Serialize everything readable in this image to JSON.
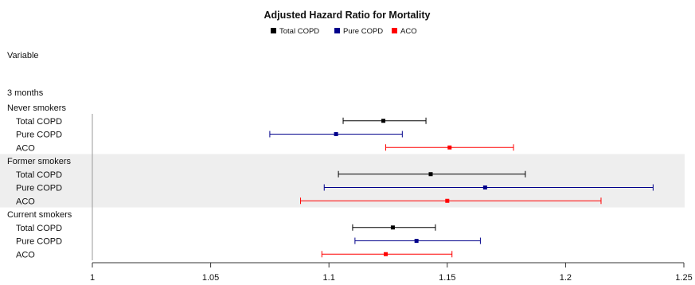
{
  "chart_data": {
    "type": "forest",
    "title": "Adjusted Hazard Ratio for Mortality",
    "column_header": "Variable",
    "period_label": "3 months",
    "legend": [
      {
        "name": "Total COPD",
        "color": "#000000"
      },
      {
        "name": "Pure COPD",
        "color": "#00008B"
      },
      {
        "name": "ACO",
        "color": "#FF0000"
      }
    ],
    "xlim": [
      1,
      1.25
    ],
    "x_ticks": [
      "1",
      "1.05",
      "1.1",
      "1.15",
      "1.2",
      "1.25"
    ],
    "legend_placement": "top-center",
    "groups": [
      {
        "name": "Never smokers",
        "shaded": false,
        "rows": [
          {
            "label": "Total COPD",
            "series": "Total COPD",
            "estimate": 1.123,
            "lower": 1.106,
            "upper": 1.141
          },
          {
            "label": "Pure COPD",
            "series": "Pure COPD",
            "estimate": 1.103,
            "lower": 1.075,
            "upper": 1.131
          },
          {
            "label": "ACO",
            "series": "ACO",
            "estimate": 1.151,
            "lower": 1.124,
            "upper": 1.178
          }
        ]
      },
      {
        "name": "Former smokers",
        "shaded": true,
        "rows": [
          {
            "label": "Total COPD",
            "series": "Total COPD",
            "estimate": 1.143,
            "lower": 1.104,
            "upper": 1.183
          },
          {
            "label": "Pure COPD",
            "series": "Pure COPD",
            "estimate": 1.166,
            "lower": 1.098,
            "upper": 1.237
          },
          {
            "label": "ACO",
            "series": "ACO",
            "estimate": 1.15,
            "lower": 1.088,
            "upper": 1.215
          }
        ]
      },
      {
        "name": "Current smokers",
        "shaded": false,
        "rows": [
          {
            "label": "Total COPD",
            "series": "Total COPD",
            "estimate": 1.127,
            "lower": 1.11,
            "upper": 1.145
          },
          {
            "label": "Pure COPD",
            "series": "Pure COPD",
            "estimate": 1.137,
            "lower": 1.111,
            "upper": 1.164
          },
          {
            "label": "ACO",
            "series": "ACO",
            "estimate": 1.124,
            "lower": 1.097,
            "upper": 1.152
          }
        ]
      }
    ]
  }
}
